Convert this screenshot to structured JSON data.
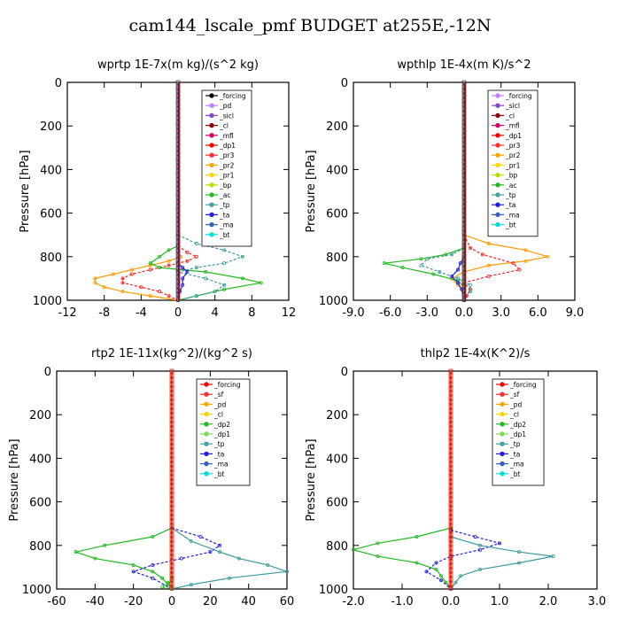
{
  "title": "cam144_lscale_pmf  BUDGET at255E,-12N",
  "chart_data": [
    {
      "type": "line",
      "title": "wprtp   1E-7x(m kg)/(s^2 kg)",
      "ylabel": "Pressure [hPa]",
      "xlim": [
        -12,
        12
      ],
      "ylim": [
        1000,
        0
      ],
      "xticks": [
        "-12",
        "-8",
        "-4",
        "0",
        "4",
        "8",
        "12"
      ],
      "yticks": [
        "0",
        "200",
        "400",
        "600",
        "800",
        "1000"
      ],
      "legend": [
        "_forcing",
        "_pd",
        "_sicl",
        "_cl",
        "_mfl",
        "_dp1",
        "_pr3",
        "_pr2",
        "_pr1",
        "_bp",
        "_ac",
        "_tp",
        "_ta",
        "_ma",
        "_bt"
      ],
      "legend_colors": [
        "#000000",
        "#c080ff",
        "#8844cc",
        "#8b0000",
        "#d4006a",
        "#ff0000",
        "#ff3030",
        "#ffa500",
        "#ffd400",
        "#b8e000",
        "#22b822",
        "#4aa0a0",
        "#2020e0",
        "#3060c0",
        "#00dddd"
      ],
      "series": [
        {
          "p": [
            750,
            780,
            800,
            820,
            840,
            860,
            880,
            900,
            920,
            940,
            960,
            980,
            1000
          ],
          "v": [
            0,
            0,
            0.3,
            -1,
            -3,
            -5,
            -7,
            -9,
            -9,
            -8,
            -6,
            -3,
            0
          ]
        },
        {
          "p": [
            750,
            780,
            800,
            820,
            840,
            860,
            880,
            900,
            920,
            940,
            960,
            980,
            1000
          ],
          "v": [
            0,
            1,
            2,
            1,
            -1,
            -3,
            -5,
            -6,
            -6,
            -4,
            -2,
            -1,
            0
          ]
        },
        {
          "p": [
            750,
            770,
            800,
            830,
            850,
            870,
            900,
            920,
            950,
            980,
            1000
          ],
          "v": [
            0,
            -1,
            -2,
            -3,
            -2,
            3,
            7,
            9,
            5,
            2,
            0
          ]
        },
        {
          "p": [
            700,
            740,
            770,
            800,
            830,
            850,
            870,
            900,
            930,
            960,
            980,
            1000
          ],
          "v": [
            0,
            2,
            5,
            7,
            5,
            2,
            0,
            3,
            5,
            4,
            2,
            0
          ]
        },
        {
          "p": [
            830,
            850,
            870,
            900,
            930,
            960,
            1000
          ],
          "v": [
            0,
            0.5,
            1,
            0.5,
            0.5,
            0.2,
            0
          ]
        }
      ]
    },
    {
      "type": "line",
      "title": "wpthlp   1E-4x(m K)/s^2",
      "ylabel": "Pressure [hPa]",
      "xlim": [
        -9,
        9
      ],
      "ylim": [
        1000,
        0
      ],
      "xticks": [
        "-9.0",
        "-6.0",
        "-3.0",
        "0.0",
        "3.0",
        "6.0",
        "9.0"
      ],
      "yticks": [
        "0",
        "200",
        "400",
        "600",
        "800",
        "1000"
      ],
      "legend": [
        "_forcing",
        "_sicl",
        "_cl",
        "_mfl",
        "_dp1",
        "_pr3",
        "_pr2",
        "_pr1",
        "_bp",
        "_ac",
        "_tp",
        "_ta",
        "_ma",
        "_bt"
      ],
      "legend_colors": [
        "#c080ff",
        "#8844cc",
        "#8b0000",
        "#d4006a",
        "#ff0000",
        "#ff3030",
        "#ffa500",
        "#ffd400",
        "#b8e000",
        "#22b822",
        "#4aa0a0",
        "#2020e0",
        "#3060c0",
        "#00dddd"
      ],
      "series": [
        {
          "p": [
            700,
            740,
            770,
            800,
            820,
            840,
            870,
            900,
            930,
            960,
            1000
          ],
          "v": [
            0,
            2,
            5,
            6.8,
            5,
            2,
            0,
            -1,
            -0.5,
            0,
            0
          ]
        },
        {
          "p": [
            700,
            760,
            790,
            830,
            860,
            890,
            920,
            950,
            980,
            1000
          ],
          "v": [
            0,
            0.5,
            1.5,
            4,
            4.5,
            2,
            0,
            0.5,
            0.2,
            0
          ]
        },
        {
          "p": [
            760,
            790,
            810,
            830,
            850,
            880,
            910,
            940,
            970,
            1000
          ],
          "v": [
            0,
            -1.5,
            -3.5,
            -6.5,
            -5,
            -2.5,
            -0.5,
            0,
            0,
            0
          ]
        },
        {
          "p": [
            760,
            790,
            810,
            840,
            870,
            900,
            930,
            960,
            1000
          ],
          "v": [
            0,
            -1,
            -3,
            -3.5,
            -2,
            -0.5,
            0.5,
            0.5,
            0
          ]
        },
        {
          "p": [
            800,
            830,
            860,
            890,
            920,
            950,
            1000
          ],
          "v": [
            0,
            -0.3,
            -0.5,
            -1,
            -0.5,
            -0.2,
            0
          ]
        }
      ]
    },
    {
      "type": "line",
      "title": "rtp2   1E-11x(kg^2)/(kg^2 s)",
      "ylabel": "Pressure [hPa]",
      "xlim": [
        -60,
        60
      ],
      "ylim": [
        1000,
        0
      ],
      "xticks": [
        "-60",
        "-40",
        "-20",
        "0",
        "20",
        "40",
        "60"
      ],
      "yticks": [
        "0",
        "200",
        "400",
        "600",
        "800",
        "1000"
      ],
      "legend": [
        "_forcing",
        "_sf",
        "_pd",
        "_cl",
        "_dp2",
        "_dp1",
        "_tp",
        "_ta",
        "_ma",
        "_bt"
      ],
      "legend_colors": [
        "#ff0000",
        "#ff3030",
        "#ffa500",
        "#ffd400",
        "#22b822",
        "#7ed957",
        "#4aa0a0",
        "#2020e0",
        "#3060c0",
        "#00dddd"
      ],
      "series": [
        {
          "p": [
            720,
            760,
            800,
            830,
            860,
            890,
            920,
            950,
            980,
            1000
          ],
          "v": [
            0,
            -10,
            -35,
            -50,
            -40,
            -20,
            -10,
            -5,
            -2,
            0
          ]
        },
        {
          "p": [
            720,
            760,
            800,
            830,
            860,
            890,
            920,
            950,
            1000
          ],
          "v": [
            0,
            15,
            25,
            20,
            5,
            -10,
            -20,
            -10,
            0
          ]
        },
        {
          "p": [
            720,
            780,
            830,
            860,
            890,
            920,
            950,
            980,
            1000
          ],
          "v": [
            0,
            10,
            25,
            35,
            50,
            60,
            30,
            10,
            0
          ]
        },
        {
          "p": [
            950,
            970,
            990,
            1000
          ],
          "v": [
            0,
            -2,
            -5,
            0
          ]
        }
      ]
    },
    {
      "type": "line",
      "title": "thlp2   1E-4x(K^2)/s",
      "ylabel": "Pressure [hPa]",
      "xlim": [
        -2,
        3
      ],
      "ylim": [
        1000,
        0
      ],
      "xticks": [
        "-2.0",
        "-1.0",
        "0.0",
        "1.0",
        "2.0",
        "3.0"
      ],
      "yticks": [
        "0",
        "200",
        "400",
        "600",
        "800",
        "1000"
      ],
      "legend": [
        "_forcing",
        "_sf",
        "_pd",
        "_cl",
        "_dp2",
        "_dp1",
        "_tp",
        "_ta",
        "_ma",
        "_bt"
      ],
      "legend_colors": [
        "#ff0000",
        "#ff3030",
        "#ffa500",
        "#ffd400",
        "#22b822",
        "#7ed957",
        "#4aa0a0",
        "#2020e0",
        "#3060c0",
        "#00dddd"
      ],
      "series": [
        {
          "p": [
            720,
            760,
            790,
            820,
            850,
            880,
            910,
            940,
            970,
            1000
          ],
          "v": [
            0,
            -0.7,
            -1.5,
            -2,
            -1.5,
            -0.7,
            -0.3,
            -0.2,
            -0.1,
            0
          ]
        },
        {
          "p": [
            730,
            760,
            790,
            820,
            850,
            880,
            920,
            960,
            1000
          ],
          "v": [
            0,
            0.5,
            1,
            0.6,
            0,
            -0.3,
            -0.5,
            -0.2,
            0
          ]
        },
        {
          "p": [
            760,
            800,
            830,
            850,
            880,
            910,
            940,
            970,
            1000
          ],
          "v": [
            0,
            0.6,
            1.4,
            2.1,
            1.4,
            0.6,
            0.2,
            0.1,
            0
          ]
        }
      ]
    }
  ]
}
